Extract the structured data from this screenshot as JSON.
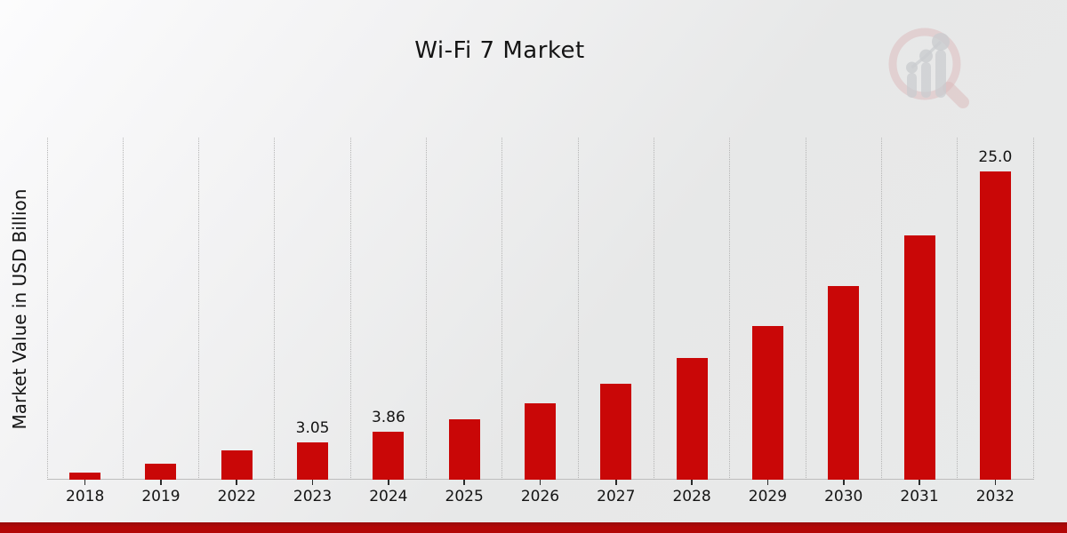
{
  "chart_data": {
    "type": "bar",
    "title": "Wi-Fi 7 Market",
    "ylabel": "Market Value in USD Billion",
    "xlabel": "",
    "categories": [
      "2018",
      "2019",
      "2022",
      "2023",
      "2024",
      "2025",
      "2026",
      "2027",
      "2028",
      "2029",
      "2030",
      "2031",
      "2032"
    ],
    "values": [
      0.6,
      1.3,
      2.41,
      3.05,
      3.86,
      4.88,
      6.16,
      7.78,
      9.83,
      12.42,
      15.69,
      19.81,
      25.0
    ],
    "data_labels": {
      "2023": "3.05",
      "2024": "3.86",
      "2032": "25.0"
    },
    "ylim": [
      0,
      27.7
    ],
    "grid": "vertical-dotted-gridlines",
    "legend": "none",
    "bar_color": "#c90707",
    "gridline_color": "#b5b5b5",
    "axis_line_color": "#bdbdbd",
    "tick_color": "#2a2a2a",
    "text_color": "#141414"
  },
  "branding": {
    "watermark_icon": "magnifier-bar-chart-logo",
    "accent_stripe_color": "#b30707"
  }
}
